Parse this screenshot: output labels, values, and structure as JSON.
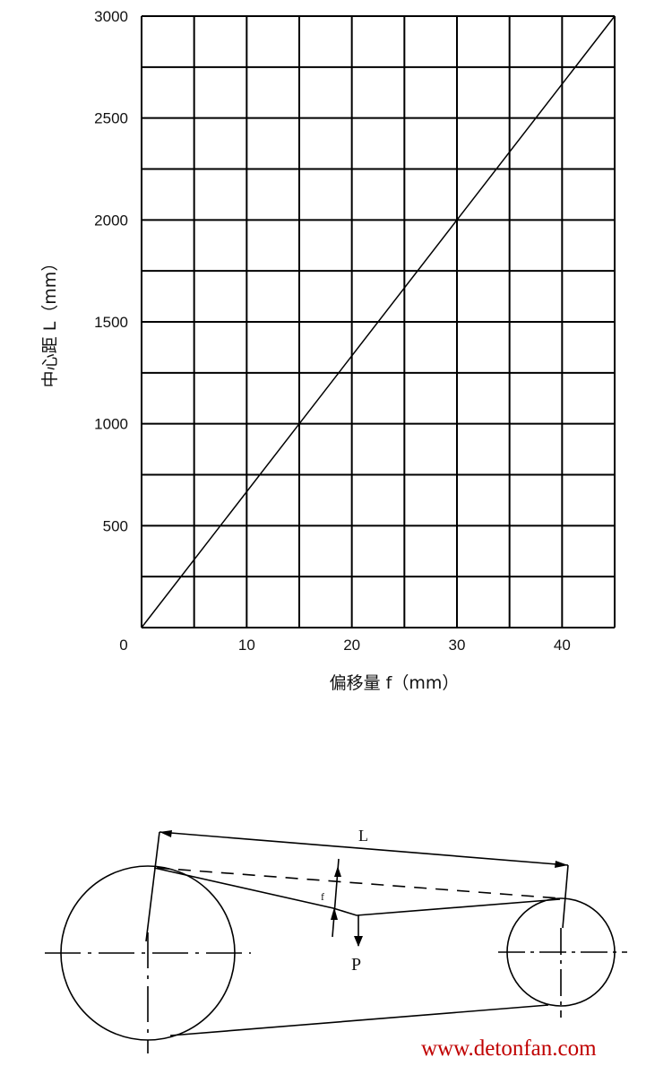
{
  "chart_data": {
    "type": "line",
    "title": "",
    "xlabel": "偏移量 f（mm）",
    "ylabel": "中心距 L（mm）",
    "xlim": [
      0,
      45
    ],
    "ylim": [
      0,
      3000
    ],
    "x_ticks": [
      0,
      10,
      20,
      30,
      40
    ],
    "x_tick_labels": [
      "0",
      "10",
      "20",
      "30",
      "40"
    ],
    "y_ticks": [
      500,
      1000,
      1500,
      2000,
      2500,
      3000
    ],
    "y_tick_labels": [
      "500",
      "1000",
      "1500",
      "2000",
      "2500",
      "3000"
    ],
    "x_grid_step": 5,
    "y_grid_step": 250,
    "grid": true,
    "series": [
      {
        "x": [
          0,
          15,
          30,
          45
        ],
        "y": [
          0,
          1000,
          2000,
          3000
        ],
        "color": "#000000"
      }
    ]
  },
  "diagram": {
    "label_L": "L",
    "label_f": "f",
    "label_P": "P"
  },
  "watermark": "www.detonfan.com",
  "colors": {
    "line": "#000000",
    "watermark": "#c00000"
  }
}
